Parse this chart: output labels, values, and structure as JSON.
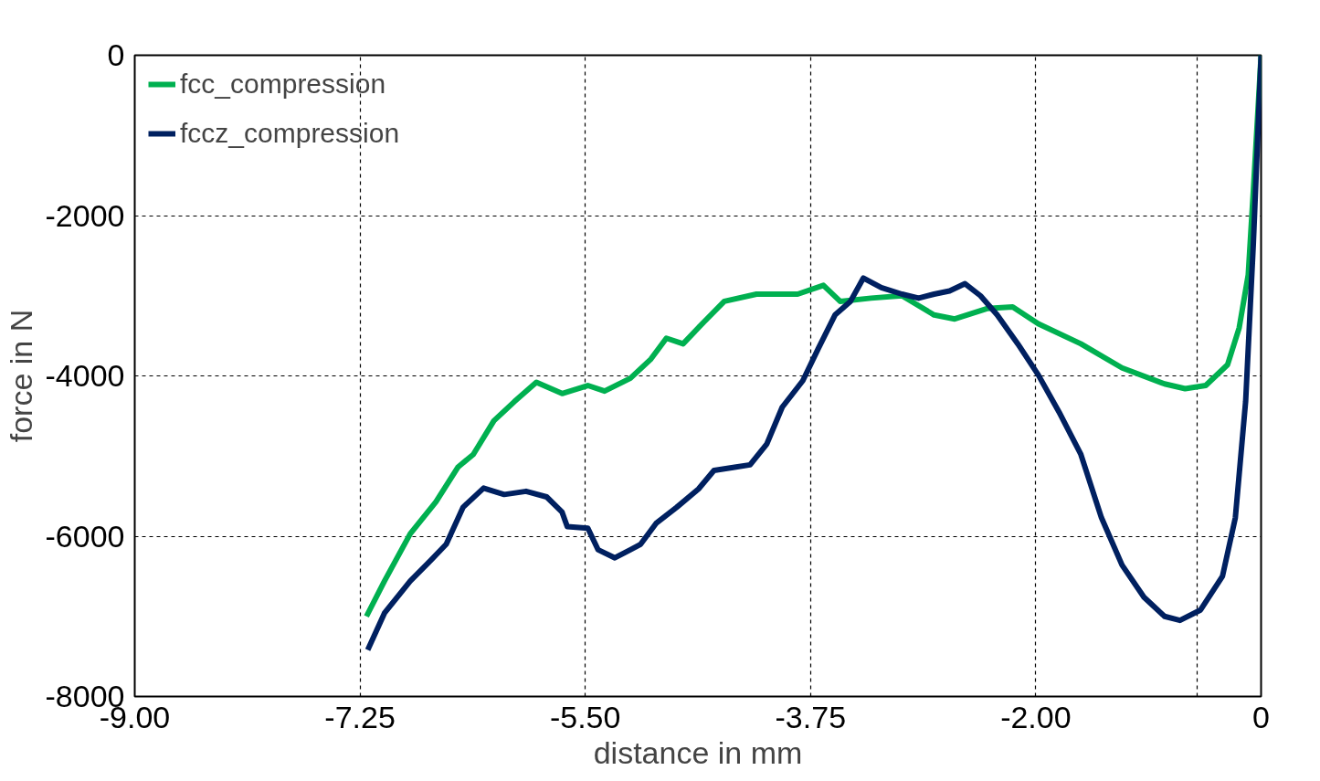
{
  "chart_data": {
    "type": "line",
    "xlabel": "distance in mm",
    "ylabel": "force in N",
    "xlim": [
      -9,
      -0.25
    ],
    "xticks": [
      {
        "value": -9,
        "label": "-9.00"
      },
      {
        "value": -7.25,
        "label": "-7.25"
      },
      {
        "value": -5.5,
        "label": "-5.50"
      },
      {
        "value": -3.75,
        "label": "-3.75"
      },
      {
        "value": -2,
        "label": "-2.00"
      },
      {
        "value": -0.75,
        "label": null
      },
      {
        "value": -0.25,
        "label": "0"
      }
    ],
    "ylim": [
      -8000,
      0
    ],
    "yticks": [
      -8000,
      -6000,
      -4000,
      -2000,
      0
    ],
    "grid": true,
    "legend": "top left",
    "marker": "none",
    "line_style": "solid",
    "series": [
      {
        "name": "fcc_compression",
        "color": "#00b050",
        "x": [
          -7.2,
          -7.06,
          -6.86,
          -6.66,
          -6.49,
          -6.37,
          -6.21,
          -6.05,
          -5.88,
          -5.68,
          -5.48,
          -5.35,
          -5.15,
          -4.99,
          -4.87,
          -4.74,
          -4.58,
          -4.42,
          -4.17,
          -3.85,
          -3.65,
          -3.52,
          -3.28,
          -3.04,
          -2.79,
          -2.63,
          -2.38,
          -2.18,
          -1.98,
          -1.65,
          -1.33,
          -1.0,
          -0.84,
          -0.68,
          -0.51,
          -0.42,
          -0.35,
          -0.31,
          -0.25
        ],
        "values": [
          -7000,
          -6560,
          -5970,
          -5570,
          -5140,
          -4980,
          -4560,
          -4320,
          -4080,
          -4220,
          -4120,
          -4190,
          -4030,
          -3790,
          -3530,
          -3600,
          -3330,
          -3070,
          -2980,
          -2980,
          -2870,
          -3070,
          -3030,
          -3000,
          -3240,
          -3290,
          -3160,
          -3140,
          -3350,
          -3600,
          -3900,
          -4100,
          -4160,
          -4120,
          -3860,
          -3400,
          -2740,
          -1690,
          0
        ]
      },
      {
        "name": "fccz_compression",
        "color": "#002060",
        "x": [
          -7.19,
          -7.06,
          -6.86,
          -6.7,
          -6.58,
          -6.45,
          -6.29,
          -6.13,
          -5.96,
          -5.8,
          -5.68,
          -5.64,
          -5.48,
          -5.4,
          -5.27,
          -5.15,
          -5.07,
          -4.95,
          -4.79,
          -4.62,
          -4.5,
          -4.34,
          -4.22,
          -4.09,
          -3.97,
          -3.81,
          -3.69,
          -3.56,
          -3.44,
          -3.34,
          -3.2,
          -3.04,
          -2.91,
          -2.79,
          -2.67,
          -2.55,
          -2.43,
          -2.3,
          -2.14,
          -1.98,
          -1.82,
          -1.65,
          -1.49,
          -1.33,
          -1.16,
          -1.0,
          -0.88,
          -0.72,
          -0.55,
          -0.45,
          -0.37,
          -0.31,
          -0.25
        ],
        "values": [
          -7420,
          -6960,
          -6560,
          -6300,
          -6100,
          -5640,
          -5400,
          -5480,
          -5440,
          -5510,
          -5700,
          -5880,
          -5900,
          -6170,
          -6270,
          -6170,
          -6100,
          -5840,
          -5640,
          -5410,
          -5180,
          -5140,
          -5110,
          -4850,
          -4390,
          -4060,
          -3660,
          -3240,
          -3070,
          -2780,
          -2900,
          -2980,
          -3030,
          -2980,
          -2940,
          -2850,
          -3000,
          -3240,
          -3600,
          -3990,
          -4450,
          -4980,
          -5770,
          -6360,
          -6760,
          -7000,
          -7050,
          -6920,
          -6500,
          -5770,
          -4320,
          -2350,
          0
        ]
      }
    ]
  }
}
